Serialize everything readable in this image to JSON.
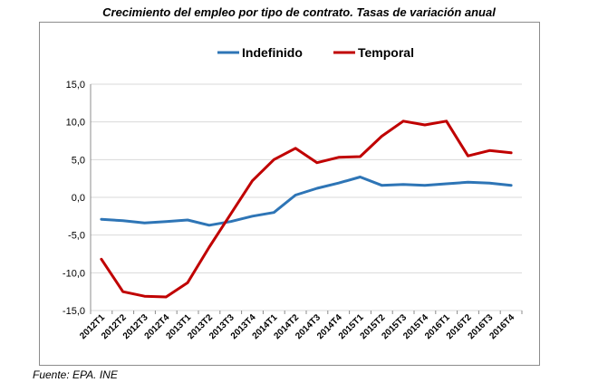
{
  "title": "Crecimiento del empleo por tipo de contrato. Tasas de variación anual",
  "source": "Fuente: EPA. INE",
  "chart_data": {
    "type": "line",
    "title": "Crecimiento del empleo por tipo de contrato. Tasas de variación anual",
    "xlabel": "",
    "ylabel": "",
    "ylim": [
      -15,
      15
    ],
    "yticks": [
      15,
      10,
      5,
      0,
      -5,
      -10,
      -15
    ],
    "ytick_labels": [
      "15,0",
      "10,0",
      "5,0",
      "0,0",
      "-5,0",
      "-10,0",
      "-15,0"
    ],
    "grid": "horizontal",
    "legend_position": "top",
    "categories": [
      "2012T1",
      "2012T2",
      "2012T3",
      "2012T4",
      "2013T1",
      "2013T2",
      "2013T3",
      "2013T4",
      "2014T1",
      "2014T2",
      "2014T3",
      "2014T4",
      "2015T1",
      "2015T2",
      "2015T3",
      "2015T4",
      "2016T1",
      "2016T2",
      "2016T3",
      "2016T4"
    ],
    "series": [
      {
        "name": "Indefinido",
        "color": "#2e75b6",
        "values": [
          -2.9,
          -3.1,
          -3.4,
          -3.2,
          -3.0,
          -3.7,
          -3.2,
          -2.5,
          -2.0,
          0.3,
          1.2,
          1.9,
          2.7,
          1.6,
          1.7,
          1.6,
          1.8,
          2.0,
          1.9,
          1.6
        ]
      },
      {
        "name": "Temporal",
        "color": "#c00000",
        "values": [
          -8.2,
          -12.5,
          -13.1,
          -13.2,
          -11.3,
          -6.6,
          -2.2,
          2.2,
          5.0,
          6.5,
          4.6,
          5.3,
          5.4,
          8.1,
          10.1,
          9.6,
          10.1,
          5.5,
          6.2,
          5.9
        ]
      }
    ]
  }
}
